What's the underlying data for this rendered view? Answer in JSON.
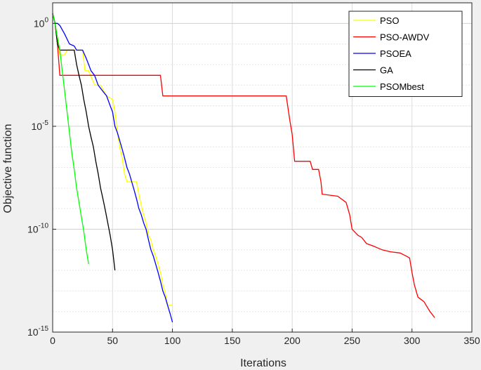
{
  "chart_data": {
    "type": "line",
    "title": "",
    "xlabel": "Iterations",
    "ylabel": "Objective function",
    "xlim": [
      0,
      350
    ],
    "ylim": [
      1e-15,
      10
    ],
    "yscale": "log",
    "grid": true,
    "legend_position": "top-right",
    "x_ticks": [
      "0",
      "50",
      "100",
      "150",
      "200",
      "250",
      "300",
      "350"
    ],
    "y_ticks": [
      {
        "value": 1,
        "base": "10",
        "exp": "0"
      },
      {
        "value": 1e-05,
        "base": "10",
        "exp": "-5"
      },
      {
        "value": 1e-10,
        "base": "10",
        "exp": "-10"
      },
      {
        "value": 1e-15,
        "base": "10",
        "exp": "-15"
      }
    ],
    "series": [
      {
        "name": "PSO",
        "color": "#ffff00",
        "points": [
          [
            0,
            3
          ],
          [
            2,
            1
          ],
          [
            4,
            0.2
          ],
          [
            6,
            0.03
          ],
          [
            10,
            0.03
          ],
          [
            12,
            0.05
          ],
          [
            25,
            0.05
          ],
          [
            27,
            0.005
          ],
          [
            30,
            0.005
          ],
          [
            35,
            0.001
          ],
          [
            40,
            0.001
          ],
          [
            45,
            0.0003
          ],
          [
            50,
            0.0002
          ],
          [
            52,
            5e-05
          ],
          [
            54,
            5e-06
          ],
          [
            56,
            1e-06
          ],
          [
            58,
            3e-07
          ],
          [
            60,
            5e-08
          ],
          [
            62,
            2e-08
          ],
          [
            70,
            2e-08
          ],
          [
            72,
            5e-09
          ],
          [
            75,
            8e-10
          ],
          [
            78,
            2e-10
          ],
          [
            80,
            5e-11
          ],
          [
            82,
            3e-11
          ],
          [
            84,
            1e-11
          ],
          [
            86,
            5e-12
          ],
          [
            88,
            2e-12
          ],
          [
            90,
            8e-13
          ],
          [
            92,
            2e-13
          ],
          [
            94,
            8e-14
          ],
          [
            96,
            2e-14
          ],
          [
            100,
            2e-14
          ]
        ]
      },
      {
        "name": "PSO-AWDV",
        "color": "#ff0000",
        "points": [
          [
            0,
            3
          ],
          [
            2,
            1
          ],
          [
            4,
            0.1
          ],
          [
            6,
            0.003
          ],
          [
            90,
            0.003
          ],
          [
            92,
            0.0003
          ],
          [
            195,
            0.0003
          ],
          [
            198,
            2e-05
          ],
          [
            200,
            4e-06
          ],
          [
            202,
            2e-07
          ],
          [
            215,
            2e-07
          ],
          [
            217,
            8e-08
          ],
          [
            222,
            8e-08
          ],
          [
            224,
            2e-08
          ],
          [
            225,
            5e-09
          ],
          [
            238,
            4e-09
          ],
          [
            245,
            2e-09
          ],
          [
            248,
            5e-10
          ],
          [
            250,
            1e-10
          ],
          [
            255,
            5e-11
          ],
          [
            258,
            4e-11
          ],
          [
            262,
            2e-11
          ],
          [
            268,
            1.5e-11
          ],
          [
            275,
            1e-11
          ],
          [
            282,
            8e-12
          ],
          [
            290,
            7e-12
          ],
          [
            295,
            5e-12
          ],
          [
            298,
            4e-12
          ],
          [
            300,
            8e-13
          ],
          [
            302,
            2e-13
          ],
          [
            305,
            5e-14
          ],
          [
            310,
            3e-14
          ],
          [
            315,
            1e-14
          ],
          [
            319,
            5e-15
          ]
        ]
      },
      {
        "name": "PSOEA",
        "color": "#0000ff",
        "points": [
          [
            0,
            3
          ],
          [
            2,
            1
          ],
          [
            4,
            1
          ],
          [
            6,
            0.8
          ],
          [
            10,
            0.3
          ],
          [
            14,
            0.1
          ],
          [
            18,
            0.08
          ],
          [
            20,
            0.05
          ],
          [
            25,
            0.05
          ],
          [
            28,
            0.02
          ],
          [
            30,
            0.01
          ],
          [
            32,
            0.005
          ],
          [
            35,
            0.003
          ],
          [
            38,
            0.001
          ],
          [
            42,
            0.0005
          ],
          [
            45,
            0.0003
          ],
          [
            48,
            0.0001
          ],
          [
            50,
            5e-05
          ],
          [
            52,
            1e-05
          ],
          [
            54,
            5e-06
          ],
          [
            56,
            2e-06
          ],
          [
            58,
            8e-07
          ],
          [
            60,
            3e-07
          ],
          [
            62,
            1e-07
          ],
          [
            64,
            5e-08
          ],
          [
            66,
            2e-08
          ],
          [
            68,
            8e-09
          ],
          [
            70,
            3e-09
          ],
          [
            72,
            1e-09
          ],
          [
            74,
            5e-10
          ],
          [
            76,
            2e-10
          ],
          [
            78,
            1e-10
          ],
          [
            80,
            3e-11
          ],
          [
            82,
            1e-11
          ],
          [
            84,
            5e-12
          ],
          [
            86,
            2e-12
          ],
          [
            88,
            8e-13
          ],
          [
            90,
            3e-13
          ],
          [
            92,
            1e-13
          ],
          [
            94,
            5e-14
          ],
          [
            96,
            2e-14
          ],
          [
            98,
            8e-15
          ],
          [
            100,
            3e-15
          ]
        ]
      },
      {
        "name": "GA",
        "color": "#000000",
        "points": [
          [
            0,
            3
          ],
          [
            2,
            1
          ],
          [
            4,
            0.1
          ],
          [
            6,
            0.05
          ],
          [
            18,
            0.05
          ],
          [
            20,
            0.01
          ],
          [
            22,
            0.003
          ],
          [
            24,
            0.001
          ],
          [
            26,
            0.0002
          ],
          [
            28,
            5e-05
          ],
          [
            30,
            1e-05
          ],
          [
            32,
            3e-06
          ],
          [
            34,
            1e-06
          ],
          [
            36,
            2e-07
          ],
          [
            38,
            5e-08
          ],
          [
            40,
            1e-08
          ],
          [
            42,
            3e-09
          ],
          [
            44,
            8e-10
          ],
          [
            46,
            2e-10
          ],
          [
            48,
            5e-11
          ],
          [
            50,
            1e-11
          ],
          [
            52,
            1e-12
          ]
        ]
      },
      {
        "name": "PSOMbest",
        "color": "#00ff00",
        "points": [
          [
            0,
            3
          ],
          [
            2,
            1
          ],
          [
            4,
            0.2
          ],
          [
            6,
            0.05
          ],
          [
            8,
            0.005
          ],
          [
            10,
            0.0005
          ],
          [
            12,
            5e-05
          ],
          [
            14,
            5e-06
          ],
          [
            16,
            5e-07
          ],
          [
            18,
            8e-08
          ],
          [
            20,
            1e-08
          ],
          [
            22,
            2e-09
          ],
          [
            24,
            4e-10
          ],
          [
            26,
            8e-11
          ],
          [
            28,
            1e-11
          ],
          [
            30,
            2e-12
          ]
        ]
      }
    ]
  }
}
